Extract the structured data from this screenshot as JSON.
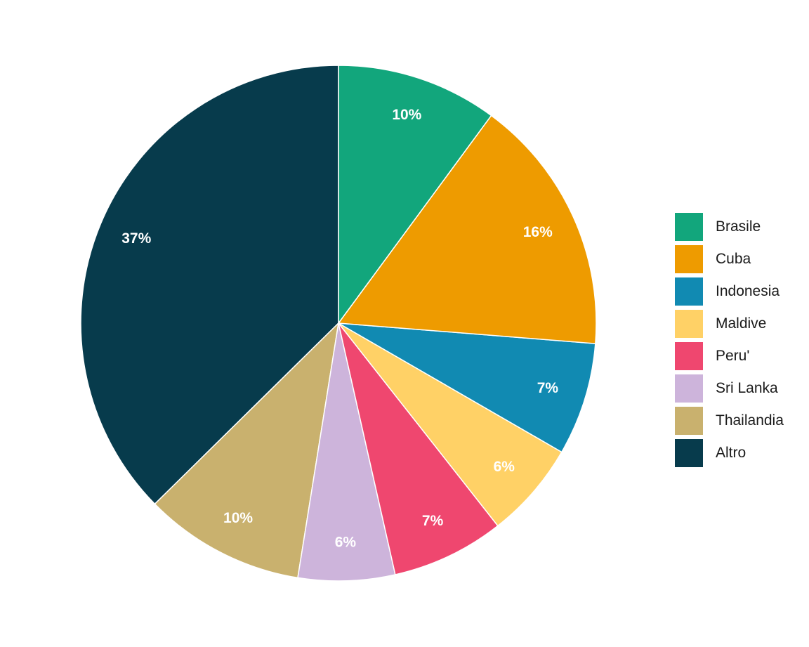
{
  "chart_data": {
    "type": "pie",
    "categories": [
      "Brasile",
      "Cuba",
      "Indonesia",
      "Maldive",
      "Peru'",
      "Sri Lanka",
      "Thailandia",
      "Altro"
    ],
    "values": [
      10,
      16,
      7,
      6,
      7,
      6,
      10,
      37
    ],
    "data_labels": [
      "10%",
      "16%",
      "7%",
      "6%",
      "7%",
      "6%",
      "10%",
      "37%"
    ],
    "colors": [
      "#12a67c",
      "#ee9b00",
      "#118ab2",
      "#ffd166",
      "#ef476f",
      "#cdb4db",
      "#c9b16e",
      "#073b4c"
    ],
    "legend_position": "right",
    "title": ""
  }
}
